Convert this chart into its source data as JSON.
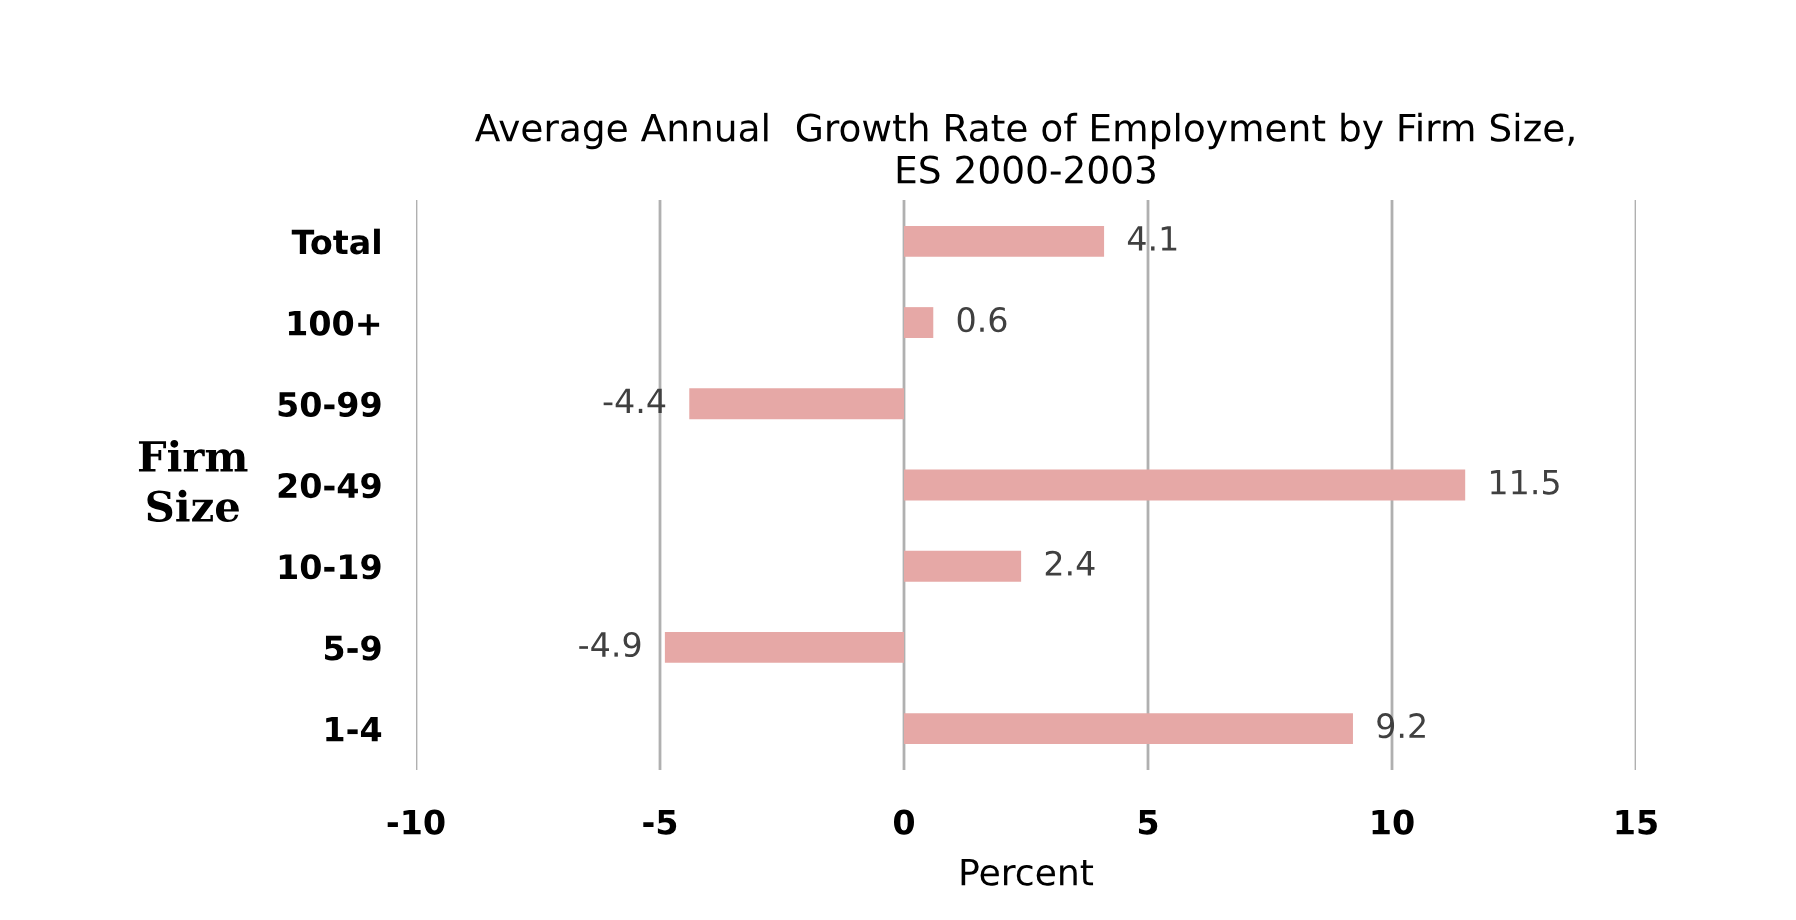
{
  "chart_data": {
    "type": "bar",
    "orientation": "horizontal",
    "title": "Average Annual  Growth Rate of Employment by Firm Size,\nES 2000-2003",
    "xlabel": "Percent",
    "ylabel": "Firm\nSize",
    "categories": [
      "Total",
      "100+",
      "50-99",
      "20-49",
      "10-19",
      "5-9",
      "1-4"
    ],
    "values": [
      4.1,
      0.6,
      -4.4,
      11.5,
      2.4,
      -4.9,
      9.2
    ],
    "color": "#e6a8a6",
    "xlim": [
      -10,
      15
    ],
    "xticks": [
      -10,
      -5,
      0,
      5,
      10,
      15
    ],
    "grid": "x",
    "data_labels": true,
    "legend": false
  }
}
